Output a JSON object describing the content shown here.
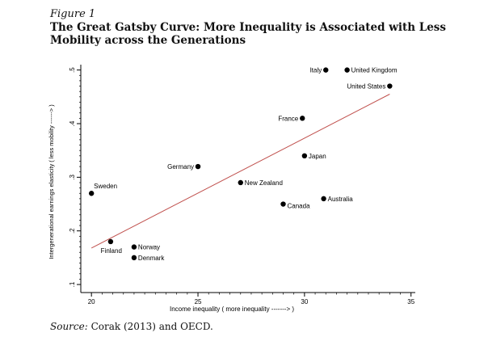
{
  "figure_label": "Figure 1",
  "title": "The Great Gatsby Curve: More Inequality is Associated with Less Mobility across the Generations",
  "source_label": "Source:",
  "source_text": "Corak (2013) and OECD.",
  "colors": {
    "points": "#000000",
    "fit_line": "#c0504d",
    "axis": "#000000"
  },
  "chart_data": {
    "type": "scatter",
    "xlabel": "Income inequality ( more inequality -------> )",
    "ylabel": "Intergenerational earnings elasticity ( less mobility ------> )",
    "xlim": [
      19.5,
      35.2
    ],
    "ylim": [
      0.085,
      0.51
    ],
    "xticks": [
      20,
      25,
      30,
      35
    ],
    "xtick_labels": [
      "20",
      "25",
      "30",
      "35"
    ],
    "yticks": [
      0.1,
      0.2,
      0.3,
      0.4,
      0.5
    ],
    "ytick_labels": [
      ".1",
      ".2",
      ".3",
      ".4",
      ".5"
    ],
    "points": [
      {
        "name": "Sweden",
        "x": 20.0,
        "y": 0.27,
        "label_side": "right-up"
      },
      {
        "name": "Finland",
        "x": 20.9,
        "y": 0.18,
        "label_side": "left-down"
      },
      {
        "name": "Norway",
        "x": 22.0,
        "y": 0.17,
        "label_side": "right"
      },
      {
        "name": "Denmark",
        "x": 22.0,
        "y": 0.15,
        "label_side": "right"
      },
      {
        "name": "Germany",
        "x": 25.0,
        "y": 0.32,
        "label_side": "left"
      },
      {
        "name": "New Zealand",
        "x": 27.0,
        "y": 0.29,
        "label_side": "right"
      },
      {
        "name": "Canada",
        "x": 29.0,
        "y": 0.25,
        "label_side": "right-down"
      },
      {
        "name": "France",
        "x": 29.9,
        "y": 0.41,
        "label_side": "left"
      },
      {
        "name": "Japan",
        "x": 30.0,
        "y": 0.34,
        "label_side": "right"
      },
      {
        "name": "Australia",
        "x": 30.9,
        "y": 0.26,
        "label_side": "right"
      },
      {
        "name": "Italy",
        "x": 31.0,
        "y": 0.5,
        "label_side": "left"
      },
      {
        "name": "United Kingdom",
        "x": 32.0,
        "y": 0.5,
        "label_side": "right"
      },
      {
        "name": "United States",
        "x": 34.0,
        "y": 0.47,
        "label_side": "left"
      }
    ],
    "fit_line": {
      "x": [
        20.0,
        34.0
      ],
      "y": [
        0.168,
        0.455
      ]
    }
  }
}
